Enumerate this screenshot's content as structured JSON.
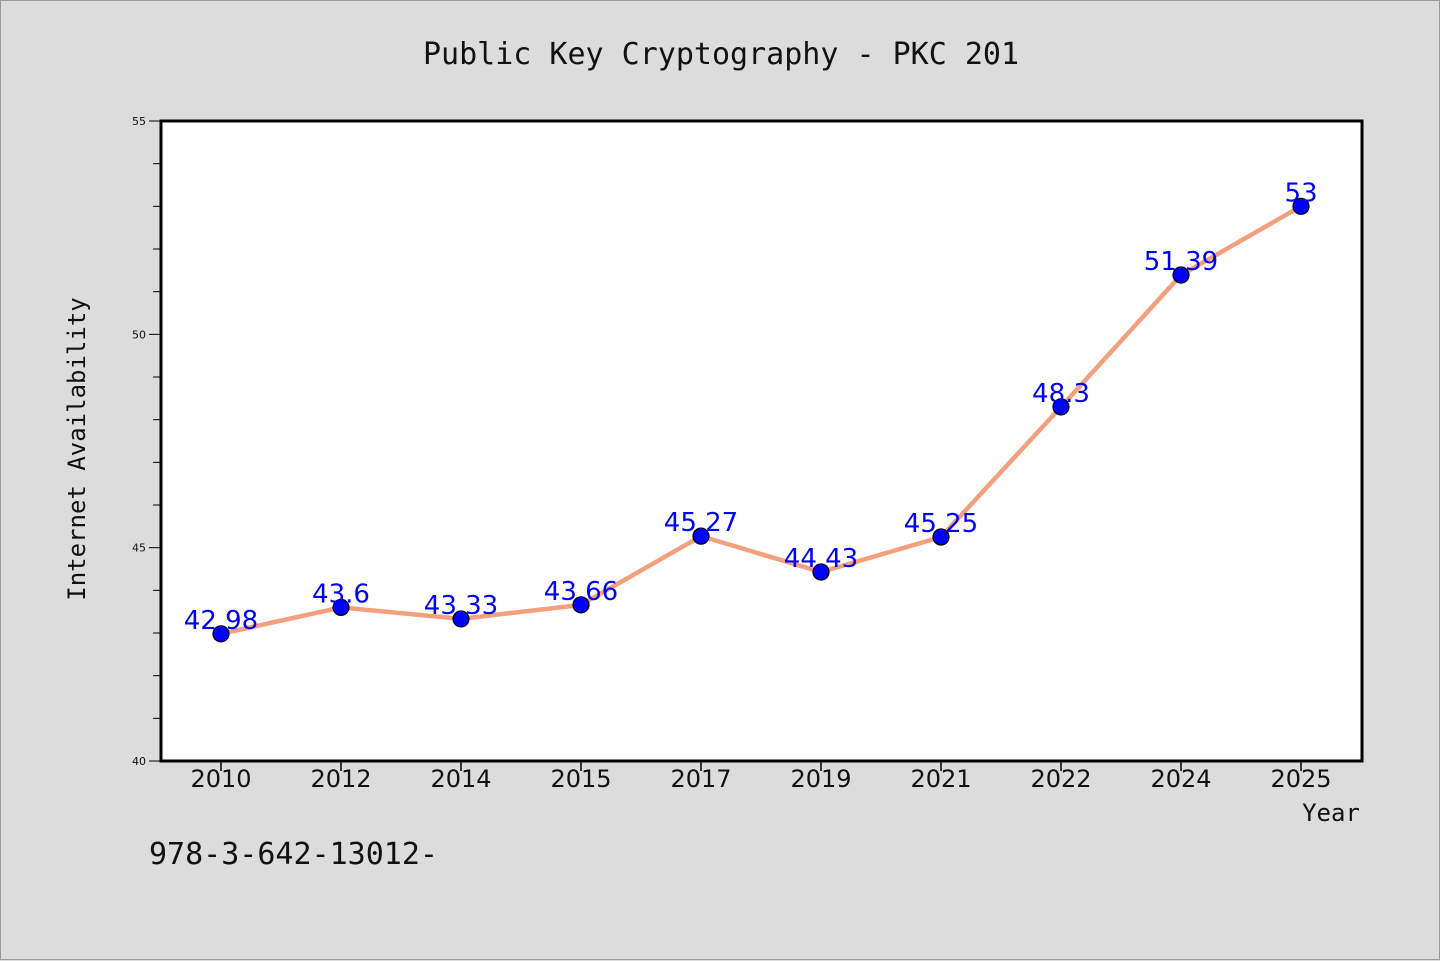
{
  "note": "978-3-642-13012-",
  "colors": {
    "background": "#dcdcdc",
    "plot_area": "#ffffff",
    "line": "#f4a07e",
    "marker": "#0000ff",
    "value_label": "#0000ff"
  },
  "chart_data": {
    "type": "line",
    "title": "Public Key Cryptography - PKC 201",
    "xlabel": "Year",
    "ylabel": "Internet Availability",
    "categories": [
      "2010",
      "2012",
      "2014",
      "2015",
      "2017",
      "2019",
      "2021",
      "2022",
      "2024",
      "2025"
    ],
    "series": [
      {
        "values": [
          42.98,
          43.6,
          43.33,
          43.66,
          45.27,
          44.43,
          45.25,
          48.3,
          51.39,
          53
        ],
        "labels": [
          "42.98",
          "43.6",
          "43.33",
          "43.66",
          "45.27",
          "44.43",
          "45.25",
          "48.3",
          "51.39",
          "53"
        ]
      }
    ],
    "ylim": [
      40,
      55
    ],
    "yticks": [
      "40",
      "45",
      "50",
      "55"
    ],
    "grid": false,
    "legend": "none"
  }
}
